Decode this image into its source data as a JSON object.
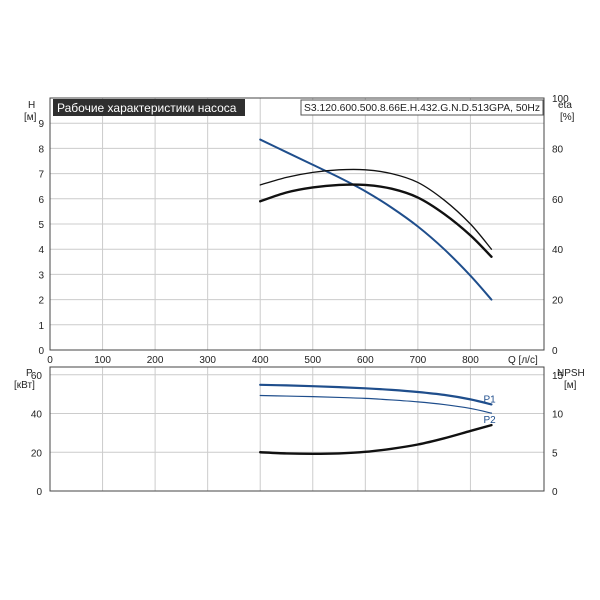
{
  "chart_data": [
    {
      "type": "line",
      "title": "Рабочие характеристики насоса",
      "model": "S3.120.600.500.8.66E.H.432.G.N.D.513GPA, 50Hz",
      "xlabel": "Q [л/с]",
      "ylabel_left": "H",
      "ylabel_left_unit": "[м]",
      "ylabel_right": "eta",
      "ylabel_right_unit": "[%]",
      "xlim": [
        0,
        940
      ],
      "ylim_left": [
        0,
        10
      ],
      "ylim_right": [
        0,
        100
      ],
      "x_ticks": [
        0,
        100,
        200,
        300,
        400,
        500,
        600,
        700,
        800
      ],
      "y_left_ticks": [
        0,
        1,
        2,
        3,
        4,
        5,
        6,
        7,
        8,
        9
      ],
      "y_right_ticks": [
        0,
        20,
        40,
        60,
        80,
        100
      ],
      "grid": true,
      "series": [
        {
          "axis": "left",
          "color": "#1f4e8c",
          "x": [
            400,
            450,
            500,
            550,
            600,
            650,
            700,
            750,
            800,
            840
          ],
          "y": [
            8.35,
            7.85,
            7.35,
            6.85,
            6.3,
            5.65,
            4.9,
            4.0,
            2.95,
            2.0
          ]
        },
        {
          "axis": "right",
          "color": "#111111",
          "x": [
            400,
            450,
            500,
            550,
            600,
            650,
            700,
            750,
            800,
            840
          ],
          "y": [
            65.5,
            68.5,
            70.5,
            71.5,
            71.5,
            70.0,
            66.5,
            59.5,
            50.0,
            40.0
          ]
        },
        {
          "axis": "right",
          "color": "#111111",
          "x": [
            400,
            450,
            500,
            550,
            600,
            650,
            700,
            750,
            800,
            840
          ],
          "y": [
            59.0,
            62.5,
            64.5,
            65.5,
            65.5,
            64.0,
            60.5,
            54.0,
            45.5,
            37.0
          ]
        }
      ]
    },
    {
      "type": "line",
      "ylabel_left": "P",
      "ylabel_left_unit": "[кВт]",
      "ylabel_right": "NPSH",
      "ylabel_right_unit": "[м]",
      "xlim": [
        0,
        940
      ],
      "ylim_left": [
        0,
        64
      ],
      "ylim_right": [
        0,
        16
      ],
      "y_left_ticks": [
        0,
        20,
        40,
        60
      ],
      "y_right_ticks": [
        0,
        5,
        10,
        15
      ],
      "grid": true,
      "series": [
        {
          "name": "P1",
          "axis": "left",
          "color": "#1f4e8c",
          "x": [
            400,
            450,
            500,
            550,
            600,
            650,
            700,
            750,
            800,
            840
          ],
          "y": [
            54.8,
            54.5,
            54.1,
            53.6,
            53.0,
            52.2,
            51.1,
            49.6,
            47.3,
            44.7
          ]
        },
        {
          "name": "P2",
          "axis": "left",
          "color": "#1f4e8c",
          "x": [
            400,
            450,
            500,
            550,
            600,
            650,
            700,
            750,
            800,
            840
          ],
          "y": [
            49.3,
            49.0,
            48.7,
            48.3,
            47.8,
            47.0,
            46.0,
            44.6,
            42.6,
            40.2
          ]
        },
        {
          "axis": "right",
          "color": "#111111",
          "x": [
            400,
            450,
            500,
            550,
            600,
            650,
            700,
            750,
            800,
            840
          ],
          "y": [
            5.0,
            4.85,
            4.8,
            4.85,
            5.05,
            5.45,
            6.0,
            6.8,
            7.75,
            8.5
          ]
        }
      ]
    }
  ]
}
